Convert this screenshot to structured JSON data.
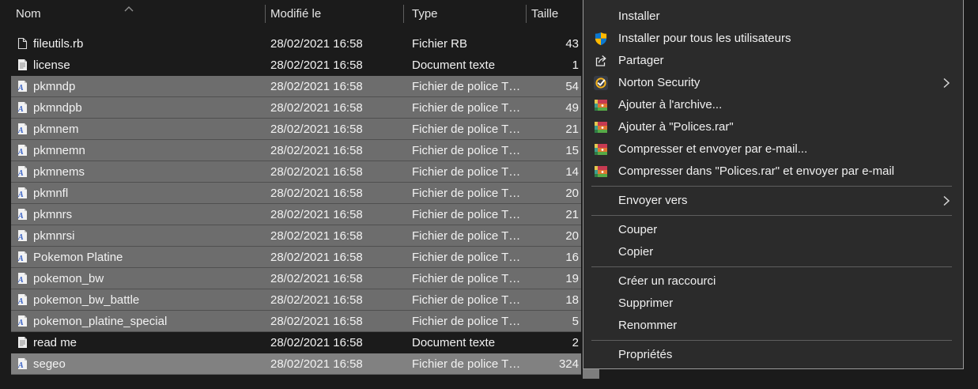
{
  "file_list": {
    "sort_indicator": "ascending",
    "columns": [
      "Nom",
      "Modifié le",
      "Type",
      "Taille"
    ],
    "rows": [
      {
        "name": "fileutils.rb",
        "modified": "28/02/2021 16:58",
        "type": "Fichier RB",
        "size": "43",
        "icon": "file",
        "selected": false,
        "hover": false
      },
      {
        "name": "license",
        "modified": "28/02/2021 16:58",
        "type": "Document texte",
        "size": "1",
        "icon": "text-doc",
        "selected": false,
        "hover": false
      },
      {
        "name": "pkmndp",
        "modified": "28/02/2021 16:58",
        "type": "Fichier de police T…",
        "size": "54",
        "icon": "font-file",
        "selected": true,
        "hover": false
      },
      {
        "name": "pkmndpb",
        "modified": "28/02/2021 16:58",
        "type": "Fichier de police T…",
        "size": "49",
        "icon": "font-file",
        "selected": true,
        "hover": false
      },
      {
        "name": "pkmnem",
        "modified": "28/02/2021 16:58",
        "type": "Fichier de police T…",
        "size": "21",
        "icon": "font-file",
        "selected": true,
        "hover": false
      },
      {
        "name": "pkmnemn",
        "modified": "28/02/2021 16:58",
        "type": "Fichier de police T…",
        "size": "15",
        "icon": "font-file",
        "selected": true,
        "hover": false
      },
      {
        "name": "pkmnems",
        "modified": "28/02/2021 16:58",
        "type": "Fichier de police T…",
        "size": "14",
        "icon": "font-file",
        "selected": true,
        "hover": false
      },
      {
        "name": "pkmnfl",
        "modified": "28/02/2021 16:58",
        "type": "Fichier de police T…",
        "size": "20",
        "icon": "font-file",
        "selected": true,
        "hover": false
      },
      {
        "name": "pkmnrs",
        "modified": "28/02/2021 16:58",
        "type": "Fichier de police T…",
        "size": "21",
        "icon": "font-file",
        "selected": true,
        "hover": false
      },
      {
        "name": "pkmnrsi",
        "modified": "28/02/2021 16:58",
        "type": "Fichier de police T…",
        "size": "20",
        "icon": "font-file",
        "selected": true,
        "hover": false
      },
      {
        "name": "Pokemon Platine",
        "modified": "28/02/2021 16:58",
        "type": "Fichier de police T…",
        "size": "16",
        "icon": "font-file",
        "selected": true,
        "hover": false
      },
      {
        "name": "pokemon_bw",
        "modified": "28/02/2021 16:58",
        "type": "Fichier de police T…",
        "size": "19",
        "icon": "font-file",
        "selected": true,
        "hover": false
      },
      {
        "name": "pokemon_bw_battle",
        "modified": "28/02/2021 16:58",
        "type": "Fichier de police T…",
        "size": "18",
        "icon": "font-file",
        "selected": true,
        "hover": false
      },
      {
        "name": "pokemon_platine_special",
        "modified": "28/02/2021 16:58",
        "type": "Fichier de police T…",
        "size": "5",
        "icon": "font-file",
        "selected": true,
        "hover": false
      },
      {
        "name": "read me",
        "modified": "28/02/2021 16:58",
        "type": "Document texte",
        "size": "2",
        "icon": "text-doc",
        "selected": false,
        "hover": false
      },
      {
        "name": "segeo",
        "modified": "28/02/2021 16:58",
        "type": "Fichier de police T…",
        "size": "324",
        "icon": "font-file",
        "selected": true,
        "hover": true
      }
    ]
  },
  "context_menu": {
    "items": [
      {
        "label": "Installer",
        "icon": null,
        "submenu": false
      },
      {
        "label": "Installer pour tous les utilisateurs",
        "icon": "uac-shield",
        "submenu": false
      },
      {
        "label": "Partager",
        "icon": "share",
        "submenu": false
      },
      {
        "label": "Norton Security",
        "icon": "norton",
        "submenu": true
      },
      {
        "label": "Ajouter à l'archive...",
        "icon": "winrar",
        "submenu": false
      },
      {
        "label": "Ajouter à \"Polices.rar\"",
        "icon": "winrar",
        "submenu": false
      },
      {
        "label": "Compresser et envoyer par e-mail...",
        "icon": "winrar",
        "submenu": false
      },
      {
        "label": "Compresser dans \"Polices.rar\" et envoyer par e-mail",
        "icon": "winrar",
        "submenu": false
      },
      {
        "separator": true
      },
      {
        "label": "Envoyer vers",
        "icon": null,
        "submenu": true
      },
      {
        "separator": true
      },
      {
        "label": "Couper",
        "icon": null,
        "submenu": false
      },
      {
        "label": "Copier",
        "icon": null,
        "submenu": false
      },
      {
        "separator": true
      },
      {
        "label": "Créer un raccourci",
        "icon": null,
        "submenu": false
      },
      {
        "label": "Supprimer",
        "icon": null,
        "submenu": false
      },
      {
        "label": "Renommer",
        "icon": null,
        "submenu": false
      },
      {
        "separator": true
      },
      {
        "label": "Propriétés",
        "icon": null,
        "submenu": false
      }
    ]
  },
  "colors": {
    "background": "#1b1b1b",
    "selection": "#6d6d6d",
    "selection_hover": "#818181",
    "menu_background": "#2b2b2b",
    "menu_border": "#9b9b9b",
    "menu_separator": "#5e5e5e",
    "text": "#f2f2f2",
    "font_icon_letter": "#3a62c4",
    "uac_blue": "#0b78d0",
    "uac_yellow": "#ffb900",
    "norton_ring": "#f5b31d",
    "winrar_red": "#c73a52",
    "winrar_orange": "#e0762f",
    "winrar_green": "#57aa46"
  }
}
